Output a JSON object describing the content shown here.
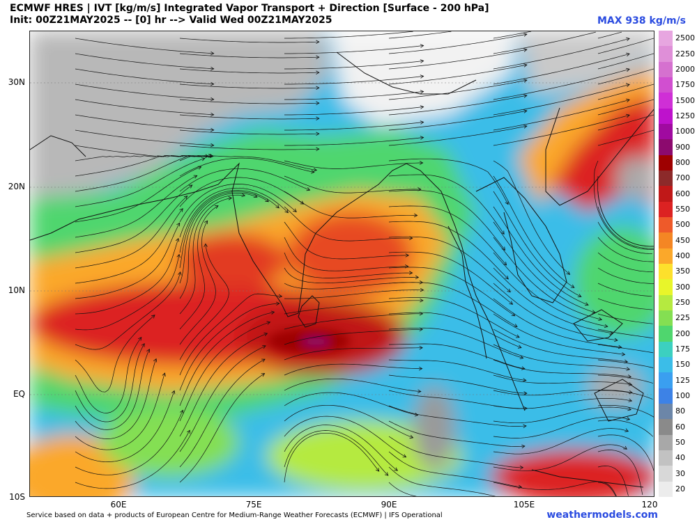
{
  "header": {
    "title_line1": "ECMWF HRES | IVT [kg/m/s] Integrated Vapor Transport + Direction [Surface - 200 hPa]",
    "title_line2": "Init: 00Z21MAY2025 -- [0] hr --> Valid Wed 00Z21MAY2025",
    "max_label": "MAX 938 kg/m/s"
  },
  "map": {
    "lat_labels": [
      "30N",
      "20N",
      "10N",
      "EQ",
      "10S"
    ],
    "lon_labels": [
      "60E",
      "75E",
      "90E",
      "105E",
      "120"
    ]
  },
  "colorbar": {
    "levels": [
      {
        "label": "2500",
        "color": "#e7a6e0"
      },
      {
        "label": "2250",
        "color": "#df8fd8"
      },
      {
        "label": "2000",
        "color": "#d571cf"
      },
      {
        "label": "1750",
        "color": "#d14fd0"
      },
      {
        "label": "1500",
        "color": "#cf2fd6"
      },
      {
        "label": "1250",
        "color": "#be12cc"
      },
      {
        "label": "1000",
        "color": "#a00aa0"
      },
      {
        "label": "900",
        "color": "#8c0a6e"
      },
      {
        "label": "800",
        "color": "#9e0000"
      },
      {
        "label": "700",
        "color": "#8c2a2a"
      },
      {
        "label": "600",
        "color": "#c01818"
      },
      {
        "label": "550",
        "color": "#dc2222"
      },
      {
        "label": "500",
        "color": "#ee5a2a"
      },
      {
        "label": "450",
        "color": "#f48624"
      },
      {
        "label": "400",
        "color": "#fba82a"
      },
      {
        "label": "350",
        "color": "#fde02c"
      },
      {
        "label": "300",
        "color": "#e8f52a"
      },
      {
        "label": "250",
        "color": "#b5ea40"
      },
      {
        "label": "225",
        "color": "#84df52"
      },
      {
        "label": "200",
        "color": "#4fd66e"
      },
      {
        "label": "175",
        "color": "#3cd0c0"
      },
      {
        "label": "150",
        "color": "#3bbde8"
      },
      {
        "label": "125",
        "color": "#3a9ff0"
      },
      {
        "label": "100",
        "color": "#3d82e6"
      },
      {
        "label": "80",
        "color": "#6c86a8"
      },
      {
        "label": "60",
        "color": "#8a8a8a"
      },
      {
        "label": "50",
        "color": "#a8a8a8"
      },
      {
        "label": "40",
        "color": "#c2c2c2"
      },
      {
        "label": "30",
        "color": "#d8d8d8"
      },
      {
        "label": "20",
        "color": "#ececec"
      }
    ]
  },
  "footer": {
    "credit": "Service based on data + products of European Centre for Medium-Range Weather Forecasts (ECMWF) | IFS Operational",
    "brand": "weathermodels.com"
  }
}
